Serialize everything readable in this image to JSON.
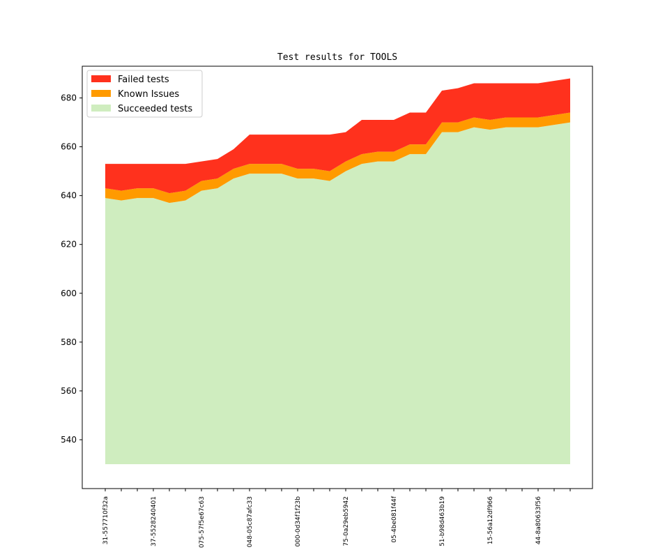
{
  "chart_data": {
    "type": "area",
    "stacked": true,
    "title": "Test results for TOOLS",
    "xlabel": "",
    "ylabel": "",
    "ylim": [
      520,
      693
    ],
    "yticks": [
      540,
      560,
      580,
      600,
      620,
      640,
      660,
      680
    ],
    "baseline": 530,
    "grid": false,
    "legend_position": "top-left",
    "x_count": 30,
    "xtick_labels": [
      {
        "index": 0,
        "label": "31-557710f32a"
      },
      {
        "index": 3,
        "label": "37-5528240401"
      },
      {
        "index": 6,
        "label": "075-57f5e67c63"
      },
      {
        "index": 9,
        "label": "048-05c87afc33"
      },
      {
        "index": 12,
        "label": "000-0d34f1f23b"
      },
      {
        "index": 15,
        "label": "75-0a29eb5942"
      },
      {
        "index": 18,
        "label": "05-4be081f44f"
      },
      {
        "index": 21,
        "label": "51-b98d463b19"
      },
      {
        "index": 24,
        "label": "15-56a12df966"
      },
      {
        "index": 27,
        "label": "44-8a80633f56"
      }
    ],
    "series": [
      {
        "name": "Succeeded tests",
        "color": "#cfedbf",
        "values": [
          639,
          638,
          639,
          639,
          637,
          638,
          642,
          643,
          647,
          649,
          649,
          649,
          647,
          647,
          646,
          650,
          653,
          654,
          654,
          657,
          657,
          666,
          666,
          668,
          667,
          668,
          668,
          668,
          669,
          670
        ]
      },
      {
        "name": "Known Issues",
        "color": "#ff9a00",
        "values": [
          643,
          642,
          643,
          643,
          641,
          642,
          646,
          647,
          651,
          653,
          653,
          653,
          651,
          651,
          650,
          654,
          657,
          658,
          658,
          661,
          661,
          670,
          670,
          672,
          671,
          672,
          672,
          672,
          673,
          674
        ]
      },
      {
        "name": "Failed tests",
        "color": "#ff311d",
        "values": [
          653,
          653,
          653,
          653,
          653,
          653,
          654,
          655,
          659,
          665,
          665,
          665,
          665,
          665,
          665,
          666,
          671,
          671,
          671,
          674,
          674,
          683,
          684,
          686,
          686,
          686,
          686,
          686,
          687,
          688
        ]
      }
    ],
    "legend": [
      "Failed tests",
      "Known Issues",
      "Succeeded tests"
    ]
  }
}
